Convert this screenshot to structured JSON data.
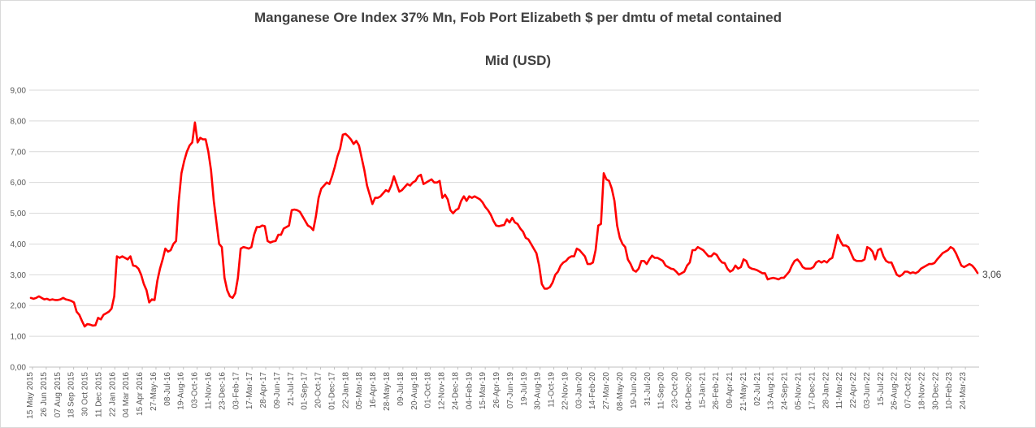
{
  "chart_data": {
    "type": "line",
    "title": "Manganese Ore Index 37% Mn, Fob Port Elizabeth $ per dmtu of metal contained",
    "subtitle": "Mid (USD)",
    "ylim": [
      0,
      9
    ],
    "yticks": [
      "0,00",
      "1,00",
      "2,00",
      "3,00",
      "4,00",
      "5,00",
      "6,00",
      "7,00",
      "8,00",
      "9,00"
    ],
    "ytick_values": [
      0,
      1,
      2,
      3,
      4,
      5,
      6,
      7,
      8,
      9
    ],
    "grid": "horizontal",
    "line_color": "#ff0000",
    "end_label": "3,06",
    "xtick_labels": [
      "15 May 2015",
      "26 Jun 2015",
      "07 Aug 2015",
      "18 Sep 2015",
      "30 Oct 2015",
      "11 Dec 2015",
      "22 Jan 2016",
      "04 Mar 2016",
      "15 Apr 2016",
      "27-May-16",
      "08-Jul-16",
      "19-Aug-16",
      "03-Oct-16",
      "11-Nov-16",
      "23-Dec-16",
      "03-Feb-17",
      "17-Mar-17",
      "28-Apr-17",
      "09-Jun-17",
      "21-Jul-17",
      "01-Sep-17",
      "20-Oct-17",
      "01-Dec-17",
      "22-Jan-18",
      "05-Mar-18",
      "16-Apr-18",
      "28-May-18",
      "09-Jul-18",
      "20-Aug-18",
      "01-Oct-18",
      "12-Nov-18",
      "24-Dec-18",
      "04-Feb-19",
      "15-Mar-19",
      "26-Apr-19",
      "07-Jun-19",
      "19-Jul-19",
      "30-Aug-19",
      "11-Oct-19",
      "22-Nov-19",
      "03-Jan-20",
      "14-Feb-20",
      "27-Mar-20",
      "08-May-20",
      "19-Jun-20",
      "31-Jul-20",
      "11-Sep-20",
      "23-Oct-20",
      "04-Dec-20",
      "15-Jan-21",
      "26-Feb-21",
      "09-Apr-21",
      "21-May-21",
      "02-Jul-21",
      "13-Aug-21",
      "24-Sep-21",
      "05-Nov-21",
      "17-Dec-21",
      "28-Jan-22",
      "11-Mar-22",
      "22-Apr-22",
      "03-Jun-22",
      "15-Jul-22",
      "26-Aug-22",
      "07-Oct-22",
      "18-Nov-22",
      "30-Dec-22",
      "10-Feb-23",
      "24-Mar-23"
    ],
    "series": [
      {
        "values": [
          2.25,
          2.22,
          2.25,
          2.3,
          2.25,
          2.2,
          2.22,
          2.18,
          2.2,
          2.18,
          2.18,
          2.2,
          2.25,
          2.2,
          2.18,
          2.15,
          2.1,
          1.8,
          1.7,
          1.5,
          1.32,
          1.4,
          1.38,
          1.35,
          1.36,
          1.6,
          1.55,
          1.7,
          1.75,
          1.8,
          1.9,
          2.3,
          3.6,
          3.55,
          3.6,
          3.55,
          3.5,
          3.6,
          3.3,
          3.28,
          3.2,
          3.0,
          2.7,
          2.5,
          2.1,
          2.2,
          2.18,
          2.8,
          3.2,
          3.5,
          3.85,
          3.75,
          3.8,
          4.0,
          4.1,
          5.4,
          6.3,
          6.7,
          7.0,
          7.2,
          7.3,
          7.95,
          7.3,
          7.45,
          7.4,
          7.4,
          7.0,
          6.4,
          5.4,
          4.7,
          4.0,
          3.9,
          2.9,
          2.5,
          2.3,
          2.25,
          2.4,
          2.9,
          3.85,
          3.9,
          3.88,
          3.85,
          3.9,
          4.3,
          4.55,
          4.55,
          4.6,
          4.58,
          4.1,
          4.05,
          4.08,
          4.1,
          4.3,
          4.3,
          4.5,
          4.55,
          4.6,
          5.1,
          5.12,
          5.1,
          5.05,
          4.9,
          4.75,
          4.6,
          4.55,
          4.45,
          4.9,
          5.5,
          5.8,
          5.9,
          6.0,
          5.95,
          6.2,
          6.5,
          6.85,
          7.1,
          7.55,
          7.58,
          7.5,
          7.4,
          7.25,
          7.35,
          7.2,
          6.8,
          6.4,
          5.9,
          5.6,
          5.3,
          5.5,
          5.5,
          5.55,
          5.65,
          5.75,
          5.7,
          5.9,
          6.2,
          5.95,
          5.7,
          5.75,
          5.85,
          5.95,
          5.9,
          6.0,
          6.05,
          6.2,
          6.25,
          5.95,
          6.0,
          6.05,
          6.1,
          6.0,
          6.0,
          6.05,
          5.5,
          5.6,
          5.45,
          5.1,
          5.0,
          5.1,
          5.15,
          5.4,
          5.55,
          5.4,
          5.55,
          5.5,
          5.55,
          5.5,
          5.45,
          5.35,
          5.2,
          5.1,
          4.95,
          4.75,
          4.6,
          4.58,
          4.6,
          4.62,
          4.8,
          4.7,
          4.85,
          4.7,
          4.65,
          4.5,
          4.4,
          4.2,
          4.15,
          4.0,
          3.85,
          3.7,
          3.3,
          2.7,
          2.55,
          2.55,
          2.6,
          2.75,
          3.0,
          3.1,
          3.3,
          3.4,
          3.45,
          3.55,
          3.6,
          3.6,
          3.85,
          3.8,
          3.7,
          3.6,
          3.35,
          3.35,
          3.4,
          3.8,
          4.6,
          4.65,
          6.3,
          6.1,
          6.05,
          5.8,
          5.4,
          4.6,
          4.2,
          4.0,
          3.9,
          3.5,
          3.35,
          3.15,
          3.1,
          3.2,
          3.45,
          3.45,
          3.35,
          3.5,
          3.62,
          3.55,
          3.55,
          3.5,
          3.45,
          3.3,
          3.25,
          3.2,
          3.18,
          3.1,
          3.0,
          3.05,
          3.1,
          3.3,
          3.4,
          3.8,
          3.8,
          3.9,
          3.85,
          3.8,
          3.7,
          3.6,
          3.6,
          3.7,
          3.65,
          3.5,
          3.4,
          3.38,
          3.2,
          3.1,
          3.15,
          3.3,
          3.2,
          3.25,
          3.5,
          3.45,
          3.25,
          3.2,
          3.18,
          3.15,
          3.1,
          3.05,
          3.05,
          2.85,
          2.88,
          2.9,
          2.88,
          2.85,
          2.9,
          2.9,
          3.0,
          3.1,
          3.3,
          3.45,
          3.5,
          3.4,
          3.25,
          3.2,
          3.2,
          3.2,
          3.25,
          3.4,
          3.45,
          3.4,
          3.45,
          3.4,
          3.5,
          3.55,
          3.9,
          4.3,
          4.1,
          3.95,
          3.95,
          3.9,
          3.7,
          3.5,
          3.45,
          3.45,
          3.45,
          3.5,
          3.9,
          3.85,
          3.75,
          3.5,
          3.8,
          3.85,
          3.6,
          3.45,
          3.4,
          3.4,
          3.2,
          3.0,
          2.95,
          3.0,
          3.1,
          3.1,
          3.05,
          3.08,
          3.05,
          3.1,
          3.2,
          3.25,
          3.3,
          3.35,
          3.35,
          3.38,
          3.5,
          3.6,
          3.7,
          3.75,
          3.8,
          3.9,
          3.85,
          3.7,
          3.5,
          3.3,
          3.25,
          3.3,
          3.35,
          3.3,
          3.2,
          3.06
        ]
      }
    ]
  }
}
